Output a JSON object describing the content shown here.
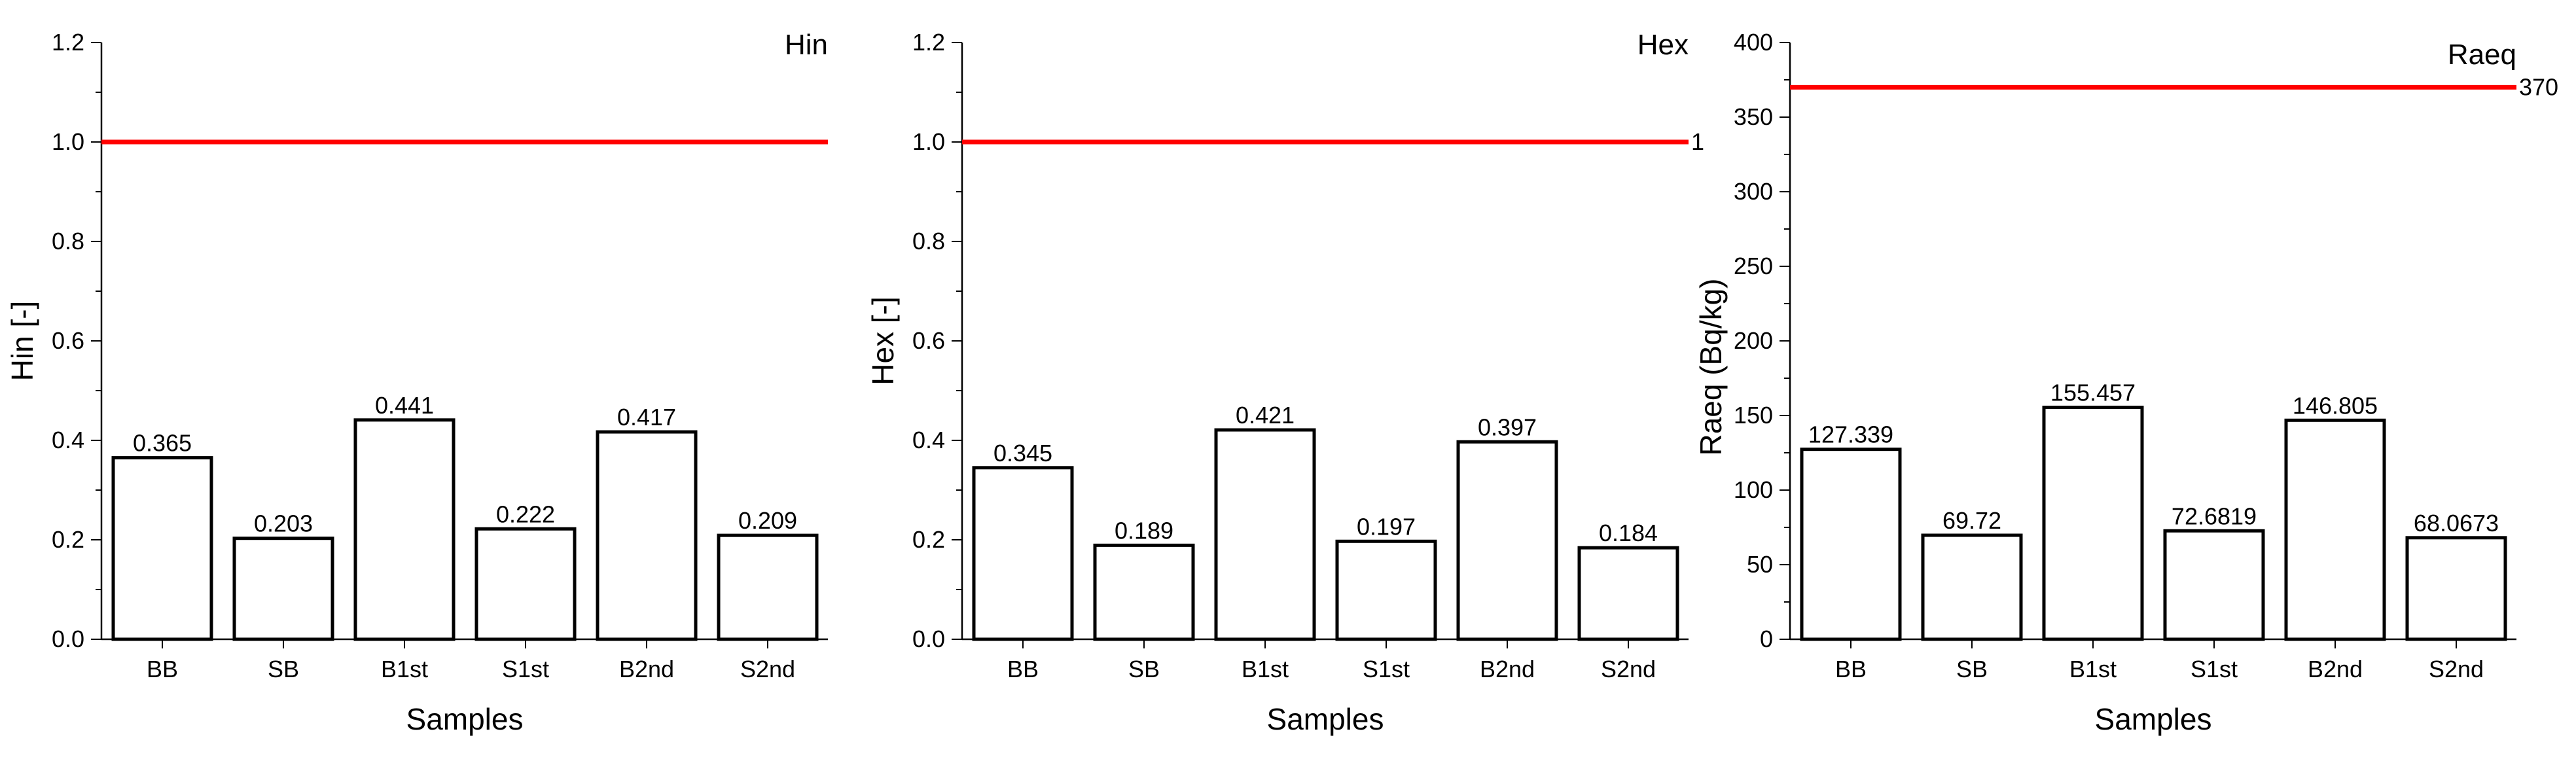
{
  "chart_data": [
    {
      "type": "bar",
      "title": "Hin",
      "xlabel": "Samples",
      "ylabel": "Hin [-]",
      "categories": [
        "BB",
        "SB",
        "B1st",
        "S1st",
        "B2nd",
        "S2nd"
      ],
      "values": [
        0.365,
        0.203,
        0.441,
        0.222,
        0.417,
        0.209
      ],
      "value_labels": [
        "0.365",
        "0.203",
        "0.441",
        "0.222",
        "0.417",
        "0.209"
      ],
      "ylim": [
        0,
        1.2
      ],
      "yticks": [
        0.0,
        0.2,
        0.4,
        0.6,
        0.8,
        1.0,
        1.2
      ],
      "ytick_labels": [
        "0.0",
        "0.2",
        "0.4",
        "0.6",
        "0.8",
        "1.0",
        "1.2"
      ],
      "reference_line": {
        "value": 1.0,
        "label": "",
        "color": "#ff0000"
      },
      "grid": false,
      "bar_fill": "#ffffff",
      "bar_edge": "#000000"
    },
    {
      "type": "bar",
      "title": "Hex",
      "xlabel": "Samples",
      "ylabel": "Hex [-]",
      "categories": [
        "BB",
        "SB",
        "B1st",
        "S1st",
        "B2nd",
        "S2nd"
      ],
      "values": [
        0.345,
        0.189,
        0.421,
        0.197,
        0.397,
        0.184
      ],
      "value_labels": [
        "0.345",
        "0.189",
        "0.421",
        "0.197",
        "0.397",
        "0.184"
      ],
      "ylim": [
        0,
        1.2
      ],
      "yticks": [
        0.0,
        0.2,
        0.4,
        0.6,
        0.8,
        1.0,
        1.2
      ],
      "ytick_labels": [
        "0.0",
        "0.2",
        "0.4",
        "0.6",
        "0.8",
        "1.0",
        "1.2"
      ],
      "reference_line": {
        "value": 1.0,
        "label": "1",
        "color": "#ff0000"
      },
      "grid": false,
      "bar_fill": "#ffffff",
      "bar_edge": "#000000"
    },
    {
      "type": "bar",
      "title": "Raeq",
      "xlabel": "Samples",
      "ylabel": "Raeq (Bq/kg)",
      "categories": [
        "BB",
        "SB",
        "B1st",
        "S1st",
        "B2nd",
        "S2nd"
      ],
      "values": [
        127.339,
        69.72,
        155.457,
        72.6819,
        146.805,
        68.0673
      ],
      "value_labels": [
        "127.339",
        "69.72",
        "155.457",
        "72.6819",
        "146.805",
        "68.0673"
      ],
      "ylim": [
        0,
        400
      ],
      "yticks": [
        0,
        50,
        100,
        150,
        200,
        250,
        300,
        350,
        400
      ],
      "ytick_labels": [
        "0",
        "50",
        "100",
        "150",
        "200",
        "250",
        "300",
        "350",
        "400"
      ],
      "reference_line": {
        "value": 370,
        "label": "370",
        "color": "#ff0000"
      },
      "grid": false,
      "bar_fill": "#ffffff",
      "bar_edge": "#000000"
    }
  ]
}
